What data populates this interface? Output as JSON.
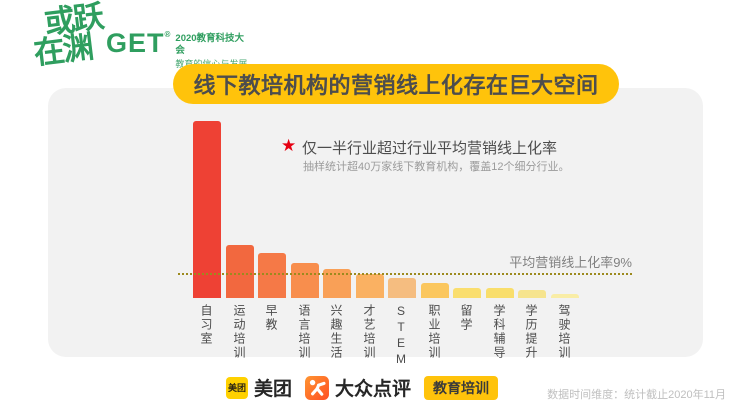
{
  "brand": {
    "calligraphy_line1": "或跃",
    "calligraphy_line2": "在渊",
    "get_logo": "GET",
    "registered": "®",
    "conference_title": "2020教育科技大会",
    "conference_subtitle": "教育的信心与发展",
    "green": "#2f9e5f"
  },
  "header": {
    "title": "线下教培机构的营销线上化存在巨大空间",
    "banner_color": "#ffc30b"
  },
  "annotation": {
    "star_icon": "★",
    "star_color": "#e60012",
    "headline": "仅一半行业超过行业平均营销线上化率",
    "subtext": "抽样统计超40万家线下教育机构，覆盖12个细分行业。"
  },
  "chart_data": {
    "type": "bar",
    "title": "线下教培机构的营销线上化存在巨大空间",
    "categories": [
      "自习室",
      "运动培训",
      "早教",
      "语言培训",
      "兴趣生活",
      "才艺培训",
      "STEM",
      "职业培训",
      "留学",
      "学科辅导",
      "学历提升",
      "驾驶培训"
    ],
    "values": [
      65,
      19.5,
      16.5,
      13,
      10.5,
      9,
      7.5,
      5.5,
      3.5,
      3.5,
      3,
      1.5
    ],
    "unit": "%",
    "ylim": [
      0,
      70
    ],
    "grid": false,
    "bar_colors": [
      "#ee4134",
      "#f2683f",
      "#f57947",
      "#f88e4d",
      "#f9a057",
      "#fab162",
      "#f5bd80",
      "#fbc75e",
      "#fade6e",
      "#f9de6b",
      "#f6e48e",
      "#f9eda6"
    ],
    "average_line": {
      "value": 9,
      "label": "平均营销线上化率9%",
      "style": "dotted",
      "color": "#9c8a1e"
    }
  },
  "footer": {
    "meituan_icon_text": "美团",
    "meituan_icon_color": "#ffd100",
    "meituan_label": "美团",
    "dianping_label": "大众点评",
    "category_badge": "教育培训",
    "badge_color": "#ffc30b",
    "note": "数据时间维度：统计截止2020年11月"
  }
}
